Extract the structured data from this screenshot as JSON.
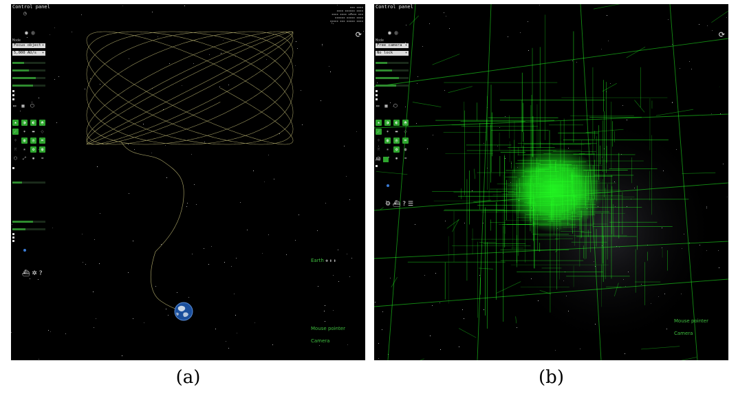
{
  "captions": {
    "a": "(a)",
    "b": "(b)"
  },
  "colors": {
    "orbit": "#c9c27a",
    "octree": "#22ff22",
    "accent": "#2ea52e",
    "background": "#000000"
  },
  "panel_a": {
    "title": "Control panel",
    "mode_label": "Mode",
    "mode_value": "Focus object",
    "speed_value": "5,000 AU/s",
    "bottom_icons": "⛴ ✲ ?",
    "focus_title": "Earth",
    "focus_icons": "✚ ⬍ ⬍",
    "mouse_title": "Mouse pointer",
    "camera_title": "Camera"
  },
  "panel_b": {
    "title": "Control panel",
    "mode_label": "Mode",
    "mode_value": "Free camera",
    "speed_value": "No lock",
    "bottom_icons": "⚙ ⛴ ? ☰",
    "ab_label": "A8",
    "mouse_title": "Mouse pointer",
    "camera_title": "Camera"
  },
  "icons": {
    "refresh": "refresh-icon",
    "type_buttons": [
      "star-icon",
      "planet-icon",
      "moon-icon",
      "satellite-icon",
      "asteroid-icon",
      "comet-icon",
      "label-icon",
      "orbit-icon",
      "cluster-icon",
      "galaxy-icon",
      "nebula-icon",
      "grid-icon",
      "particles-icon",
      "constellation-icon",
      "boundaries-icon",
      "milkyway-icon",
      "meshes-icon",
      "axes-icon",
      "effects-icon",
      "clouds-icon"
    ]
  }
}
